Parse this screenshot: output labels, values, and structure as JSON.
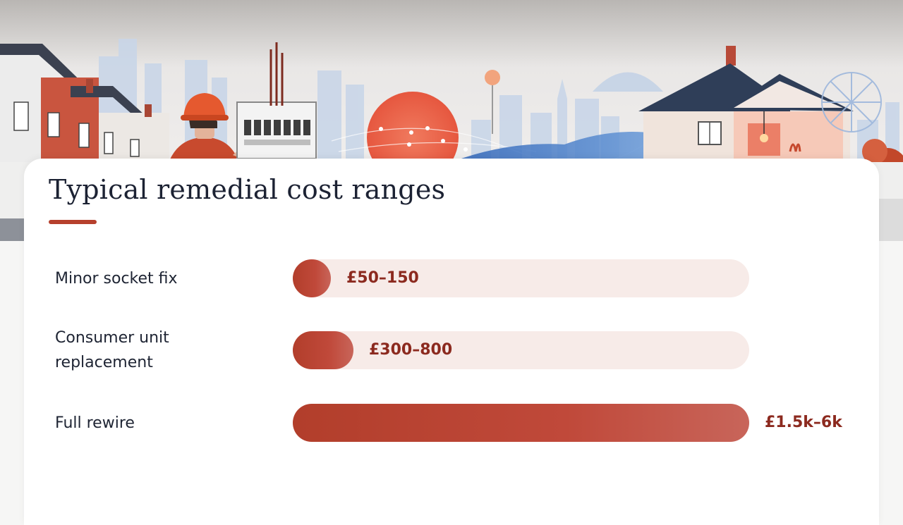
{
  "colors": {
    "accent": "#b6402d",
    "bar_fill": "#b9422f",
    "bar_track": "#f7ebe8",
    "value_text": "#8c2a1f",
    "label_text": "#1e2433"
  },
  "hero": {
    "scene": [
      "city-skyline-icon",
      "terraced-houses-icon",
      "electrician-icon",
      "consumer-unit-icon",
      "house-interior-icon",
      "ferris-wheel-icon"
    ]
  },
  "chart_data": {
    "type": "bar",
    "orientation": "horizontal",
    "title": "Typical remedial cost ranges",
    "categories": [
      "Minor socket fix",
      "Consumer unit replacement",
      "Full rewire"
    ],
    "values": [
      150,
      800,
      6000
    ],
    "ranges": [
      [
        50,
        150
      ],
      [
        300,
        800
      ],
      [
        1500,
        6000
      ]
    ],
    "value_labels": [
      "£50–150",
      "£300–800",
      "£1.5k–6k"
    ],
    "currency": "GBP",
    "xlim": [
      0,
      6000
    ],
    "grid": false,
    "legend": "none"
  }
}
